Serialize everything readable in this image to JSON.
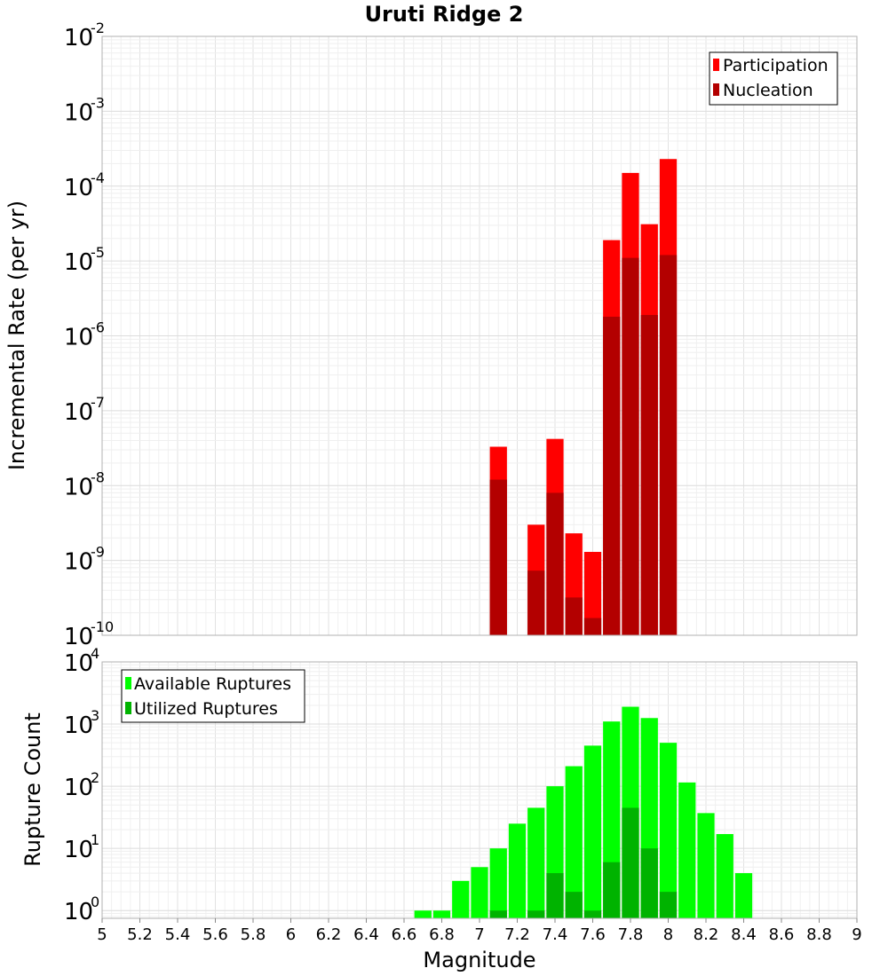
{
  "chart_data": [
    {
      "type": "bar",
      "title": "Uruti Ridge 2",
      "xlabel": "Magnitude",
      "ylabel": "Incremental Rate (per yr)",
      "xlim": [
        5,
        9
      ],
      "ylim": [
        1e-10,
        0.01
      ],
      "yscale": "log",
      "grid": true,
      "legend_position": "top-right",
      "legend": [
        "Participation",
        "Nucleation"
      ],
      "series": [
        {
          "name": "Participation",
          "color": "#ff0000",
          "x": [
            7.1,
            7.3,
            7.4,
            7.5,
            7.6,
            7.7,
            7.8,
            7.9,
            8.0
          ],
          "values": [
            3.3e-08,
            3e-09,
            4.2e-08,
            2.3e-09,
            1.3e-09,
            1.9e-05,
            0.00015,
            3.1e-05,
            0.00023
          ]
        },
        {
          "name": "Nucleation",
          "color": "#b30000",
          "x": [
            7.1,
            7.3,
            7.4,
            7.5,
            7.6,
            7.7,
            7.8,
            7.9,
            8.0
          ],
          "values": [
            1.2e-08,
            7.3e-10,
            8e-09,
            3.2e-10,
            1.7e-10,
            1.8e-06,
            1.1e-05,
            1.9e-06,
            1.2e-05
          ]
        }
      ]
    },
    {
      "type": "bar",
      "xlabel": "Magnitude",
      "ylabel": "Rupture Count",
      "xlim": [
        5,
        9
      ],
      "ylim": [
        0.75,
        10000
      ],
      "yscale": "log",
      "grid": true,
      "legend_position": "top-left",
      "legend": [
        "Available Ruptures",
        "Utilized Ruptures"
      ],
      "x_ticks": [
        "5",
        "5.2",
        "5.4",
        "5.6",
        "5.8",
        "6",
        "6.2",
        "6.4",
        "6.6",
        "6.8",
        "7",
        "7.2",
        "7.4",
        "7.6",
        "7.8",
        "8",
        "8.2",
        "8.4",
        "8.6",
        "8.8",
        "9"
      ],
      "series": [
        {
          "name": "Available Ruptures",
          "color": "#00ff00",
          "x": [
            6.7,
            6.8,
            6.9,
            7.0,
            7.1,
            7.2,
            7.3,
            7.4,
            7.5,
            7.6,
            7.7,
            7.8,
            7.9,
            8.0,
            8.1,
            8.2,
            8.3,
            8.4
          ],
          "values": [
            1,
            1,
            3,
            5,
            10,
            25,
            45,
            100,
            210,
            450,
            1100,
            1900,
            1250,
            500,
            115,
            37,
            17,
            4
          ]
        },
        {
          "name": "Utilized Ruptures",
          "color": "#00b300",
          "x": [
            7.1,
            7.3,
            7.4,
            7.5,
            7.6,
            7.7,
            7.8,
            7.9,
            8.0
          ],
          "values": [
            1,
            1,
            4,
            2,
            1,
            6,
            45,
            10,
            2
          ]
        }
      ]
    }
  ]
}
